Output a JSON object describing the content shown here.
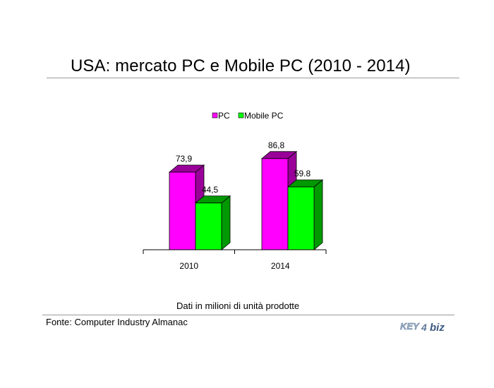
{
  "title": "USA: mercato PC e Mobile PC (2010 - 2014)",
  "subtitle": "Dati in milioni di unità prodotte",
  "source": "Fonte: Computer Industry Almanac",
  "logo_text": "KEY4biz",
  "colors": {
    "pc": "#ff00ff",
    "pc_side": "#990099",
    "mobile": "#00ff00",
    "mobile_side": "#009900"
  },
  "chart_data": {
    "type": "bar",
    "categories": [
      "2010",
      "2014"
    ],
    "series": [
      {
        "name": "PC",
        "values": [
          73.9,
          86.8
        ],
        "labels": [
          "73,9",
          "86,8"
        ]
      },
      {
        "name": "Mobile PC",
        "values": [
          44.5,
          59.8
        ],
        "labels": [
          "44,5",
          "59.8"
        ]
      }
    ],
    "title": "USA: mercato PC e Mobile PC (2010 - 2014)",
    "xlabel": "",
    "ylabel": "",
    "ylim": [
      0,
      100
    ],
    "legend": "top-center",
    "grid": false
  }
}
